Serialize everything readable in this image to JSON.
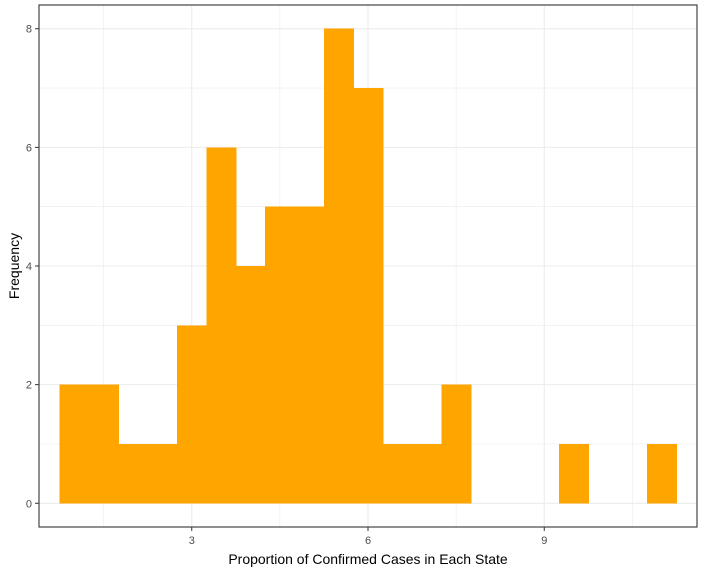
{
  "chart_data": {
    "type": "bar",
    "subtype": "histogram",
    "title": "",
    "xlabel": "Proportion of Confirmed Cases in Each State",
    "ylabel": "Frequency",
    "xlim": [
      0.4,
      11.6
    ],
    "ylim": [
      -0.4,
      8.4
    ],
    "x_ticks": [
      3,
      6,
      9
    ],
    "y_ticks": [
      0,
      2,
      4,
      6,
      8
    ],
    "bin_width": 0.5,
    "bins": [
      {
        "start": 0.75,
        "end": 1.25,
        "count": 2
      },
      {
        "start": 1.25,
        "end": 1.75,
        "count": 2
      },
      {
        "start": 1.75,
        "end": 2.25,
        "count": 1
      },
      {
        "start": 2.25,
        "end": 2.75,
        "count": 1
      },
      {
        "start": 2.75,
        "end": 3.25,
        "count": 3
      },
      {
        "start": 3.25,
        "end": 3.75,
        "count": 6
      },
      {
        "start": 3.75,
        "end": 4.25,
        "count": 4
      },
      {
        "start": 4.25,
        "end": 4.75,
        "count": 5
      },
      {
        "start": 4.75,
        "end": 5.25,
        "count": 5
      },
      {
        "start": 5.25,
        "end": 5.75,
        "count": 8
      },
      {
        "start": 5.75,
        "end": 6.25,
        "count": 7
      },
      {
        "start": 6.25,
        "end": 6.75,
        "count": 1
      },
      {
        "start": 6.75,
        "end": 7.25,
        "count": 1
      },
      {
        "start": 7.25,
        "end": 7.75,
        "count": 2
      },
      {
        "start": 7.75,
        "end": 8.25,
        "count": 0
      },
      {
        "start": 8.25,
        "end": 8.75,
        "count": 0
      },
      {
        "start": 8.75,
        "end": 9.25,
        "count": 0
      },
      {
        "start": 9.25,
        "end": 9.75,
        "count": 1
      },
      {
        "start": 9.75,
        "end": 10.25,
        "count": 0
      },
      {
        "start": 10.25,
        "end": 10.75,
        "count": 0
      },
      {
        "start": 10.75,
        "end": 11.25,
        "count": 1
      }
    ],
    "bar_color": "#FFA500",
    "grid": true,
    "grid_color": "#EBEBEB",
    "panel_border_color": "#333333",
    "legend": "none"
  }
}
